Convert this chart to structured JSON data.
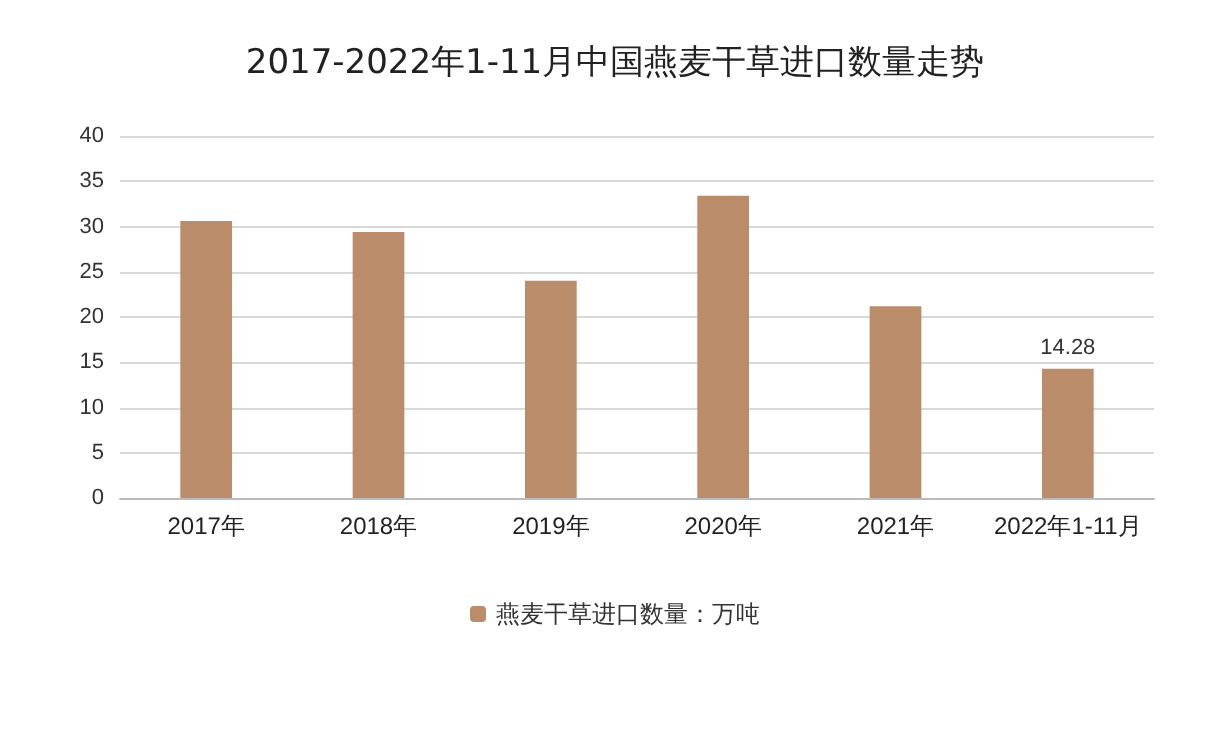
{
  "chart_data": {
    "type": "bar",
    "title": "2017-2022年1-11月中国燕麦干草进口数量走势",
    "categories": [
      "2017年",
      "2018年",
      "2019年",
      "2020年",
      "2021年",
      "2022年1-11月"
    ],
    "series": [
      {
        "name": "燕麦干草进口数量：万吨",
        "color": "#bb8c6a",
        "values": [
          30.6,
          29.4,
          24.0,
          33.4,
          21.2,
          14.28
        ],
        "value_labels": [
          null,
          null,
          null,
          null,
          null,
          "14.28"
        ]
      }
    ],
    "ylim": [
      0,
      40
    ],
    "yticks": [
      0,
      5,
      10,
      15,
      20,
      25,
      30,
      35,
      40
    ],
    "grid": "y",
    "legend": "bottom"
  }
}
